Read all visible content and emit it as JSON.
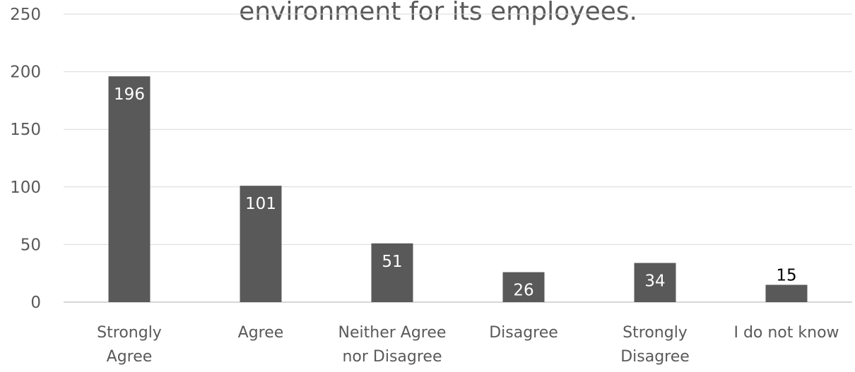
{
  "chart_data": {
    "type": "bar",
    "title": "environment for its employees.",
    "categories": [
      [
        "Strongly",
        "Agree"
      ],
      [
        "Agree"
      ],
      [
        "Neither Agree",
        "nor Disagree"
      ],
      [
        "Disagree"
      ],
      [
        "Strongly",
        "Disagree"
      ],
      [
        "I do not know"
      ]
    ],
    "values": [
      196,
      101,
      51,
      26,
      34,
      15
    ],
    "ylim": [
      0,
      250
    ],
    "yticks": [
      0,
      50,
      100,
      150,
      200,
      250
    ],
    "grid": true,
    "xlabel": "",
    "ylabel": "",
    "bar_color": "#595959",
    "label_inside_color": "#ffffff",
    "label_outside_color": "#000000"
  }
}
